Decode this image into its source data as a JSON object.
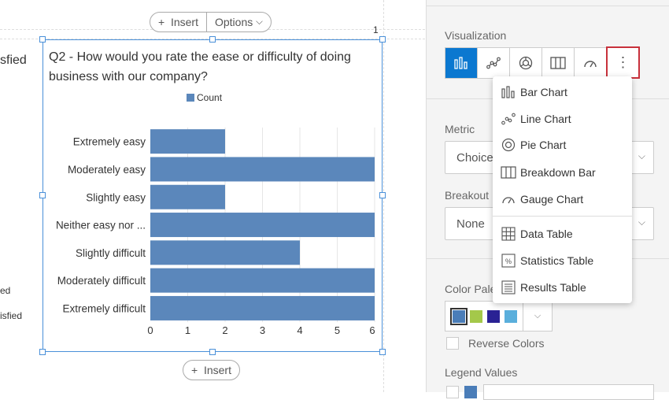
{
  "toolbar": {
    "insert_label": "Insert",
    "options_label": "Options",
    "bottom_insert_label": "Insert",
    "page_number": "1"
  },
  "left_fragments": [
    "sfied",
    "ed",
    "isfied"
  ],
  "widget": {
    "title": "Q2 - How would you rate the ease or difficulty of doing business with our company?"
  },
  "chart_data": {
    "type": "bar",
    "orientation": "horizontal",
    "title": "Q2 - How would you rate the ease or difficulty of doing business with our company?",
    "categories": [
      "Extremely easy",
      "Moderately easy",
      "Slightly easy",
      "Neither easy nor ...",
      "Slightly difficult",
      "Moderately difficult",
      "Extremely difficult"
    ],
    "series": [
      {
        "name": "Count",
        "values": [
          2,
          6,
          2,
          6,
          4,
          6,
          6
        ],
        "color": "#5b87bb"
      }
    ],
    "xticks": [
      "0",
      "1",
      "2",
      "3",
      "4",
      "5",
      "6"
    ],
    "xlim": [
      0,
      6
    ],
    "grid": true,
    "legend": "top"
  },
  "panel": {
    "visualization_label": "Visualization",
    "viz_buttons": [
      "bar-chart",
      "line-chart",
      "pie-chart",
      "breakdown-bar",
      "gauge-chart",
      "more-options"
    ],
    "metric_label": "Metric",
    "metric_value": "Choice",
    "breakout_label": "Breakout",
    "breakout_value": "None",
    "color_palette_label": "Color Palette",
    "palette_colors": [
      "#4a7db8",
      "#a4c84a",
      "#2a2294",
      "#5aafdc"
    ],
    "reverse_colors_label": "Reverse Colors",
    "legend_values_label": "Legend Values",
    "accent": "#0b78d0",
    "highlight": "#c8313b"
  },
  "menu": {
    "items": [
      {
        "label": "Bar Chart",
        "icon": "bar-chart-icon"
      },
      {
        "label": "Line Chart",
        "icon": "line-chart-icon"
      },
      {
        "label": "Pie Chart",
        "icon": "pie-chart-icon"
      },
      {
        "label": "Breakdown Bar",
        "icon": "breakdown-bar-icon"
      },
      {
        "label": "Gauge Chart",
        "icon": "gauge-chart-icon"
      },
      {
        "label": "Data Table",
        "icon": "data-table-icon"
      },
      {
        "label": "Statistics Table",
        "icon": "statistics-table-icon"
      },
      {
        "label": "Results Table",
        "icon": "results-table-icon"
      }
    ]
  }
}
